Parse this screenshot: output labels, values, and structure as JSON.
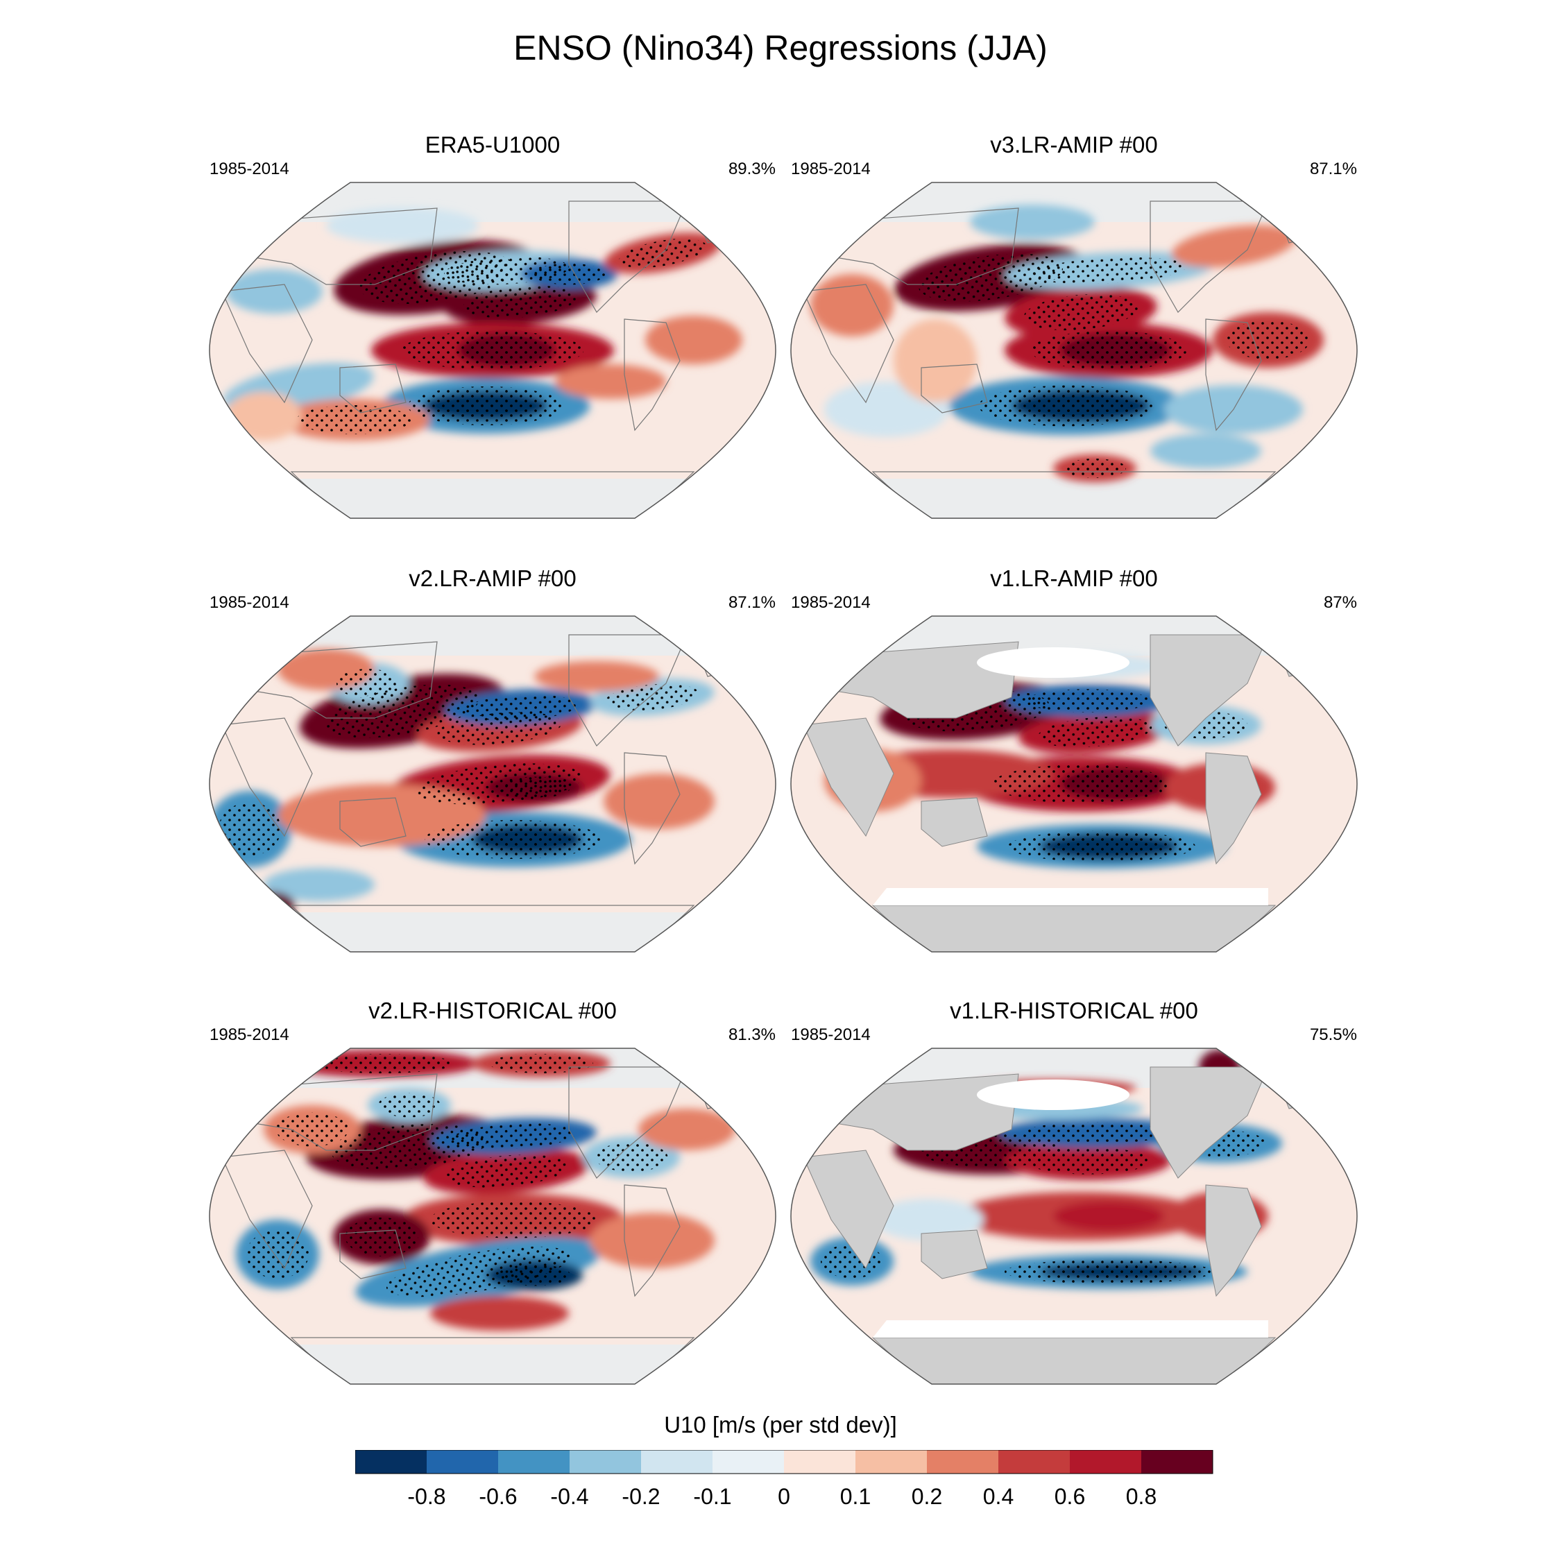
{
  "title": "ENSO (Nino34) Regressions (JJA)",
  "panels": [
    {
      "title": "ERA5-U1000",
      "years": "1985-2014",
      "percent": "89.3%",
      "land_masked": false
    },
    {
      "title": "v3.LR-AMIP  #00",
      "years": "1985-2014",
      "percent": "87.1%",
      "land_masked": false
    },
    {
      "title": "v2.LR-AMIP  #00",
      "years": "1985-2014",
      "percent": "87.1%",
      "land_masked": false
    },
    {
      "title": "v1.LR-AMIP  #00",
      "years": "1985-2014",
      "percent": "87%",
      "land_masked": true
    },
    {
      "title": "v2.LR-HISTORICAL  #00",
      "years": "1985-2014",
      "percent": "81.3%",
      "land_masked": false
    },
    {
      "title": "v1.LR-HISTORICAL  #00",
      "years": "1985-2014",
      "percent": "75.5%",
      "land_masked": true
    }
  ],
  "colorbar": {
    "label": "U10 [m/s (per std dev)]",
    "ticks": [
      "-0.8",
      "-0.6",
      "-0.4",
      "-0.2",
      "-0.1",
      "0",
      "0.1",
      "0.2",
      "0.4",
      "0.6",
      "0.8"
    ],
    "colors": [
      "#053061",
      "#2166ac",
      "#4393c3",
      "#92c5de",
      "#d1e5f0",
      "#e9f1f6",
      "#fbe4d9",
      "#f6bfa4",
      "#e48066",
      "#c43c3c",
      "#b2182b",
      "#67001f"
    ]
  },
  "chart_data": {
    "type": "heatmap",
    "title": "ENSO (Nino34) Regressions (JJA)",
    "variable": "U10",
    "units": "m/s (per std dev)",
    "levels": [
      -0.8,
      -0.6,
      -0.4,
      -0.2,
      -0.1,
      0,
      0.1,
      0.2,
      0.4,
      0.6,
      0.8
    ],
    "period": "1985-2014",
    "panels": [
      {
        "name": "ERA5-U1000",
        "pattern_value": "89.3%"
      },
      {
        "name": "v3.LR-AMIP  #00",
        "pattern_value": "87.1%"
      },
      {
        "name": "v2.LR-AMIP  #00",
        "pattern_value": "87.1%"
      },
      {
        "name": "v1.LR-AMIP  #00",
        "pattern_value": "87%"
      },
      {
        "name": "v2.LR-HISTORICAL  #00",
        "pattern_value": "81.3%"
      },
      {
        "name": "v1.LR-HISTORICAL  #00",
        "pattern_value": "75.5%"
      }
    ]
  }
}
